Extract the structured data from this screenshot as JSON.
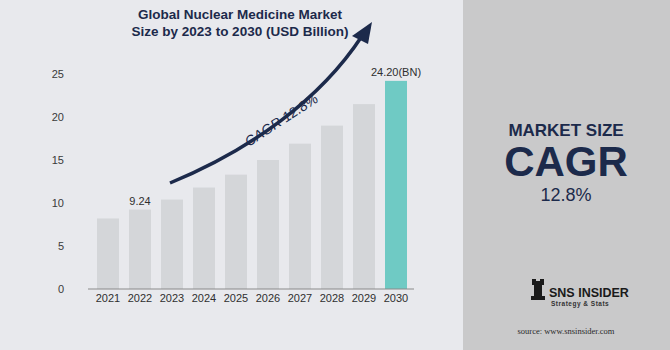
{
  "chart_data": {
    "type": "bar",
    "title": "Global Nuclear Medicine Market Size by 2023 to 2030 (USD Billion)",
    "categories": [
      "2021",
      "2022",
      "2023",
      "2024",
      "2025",
      "2026",
      "2027",
      "2028",
      "2029",
      "2030"
    ],
    "values": [
      8.2,
      9.24,
      10.4,
      11.8,
      13.3,
      15.0,
      16.9,
      19.0,
      21.5,
      24.2
    ],
    "value_labels": [
      null,
      "9.24",
      null,
      null,
      null,
      null,
      null,
      null,
      null,
      "24.20(BN)"
    ],
    "colors": [
      "#d4d6d9",
      "#d4d6d9",
      "#d4d6d9",
      "#d4d6d9",
      "#d4d6d9",
      "#d4d6d9",
      "#d4d6d9",
      "#d4d6d9",
      "#d4d6d9",
      "#6fcac4"
    ],
    "ylim": [
      0,
      25
    ],
    "yticks": [
      0,
      5,
      10,
      15,
      20,
      25
    ],
    "grid": false,
    "annotations": [
      "CAGR 12.8%"
    ]
  },
  "panel": {
    "heading": "MARKET SIZE",
    "big": "CAGR",
    "value": "12.8%"
  },
  "logo": {
    "name": "SNS INSIDER",
    "tagline": "Strategy & Stats"
  },
  "source": "source: www.snsinsider.com"
}
